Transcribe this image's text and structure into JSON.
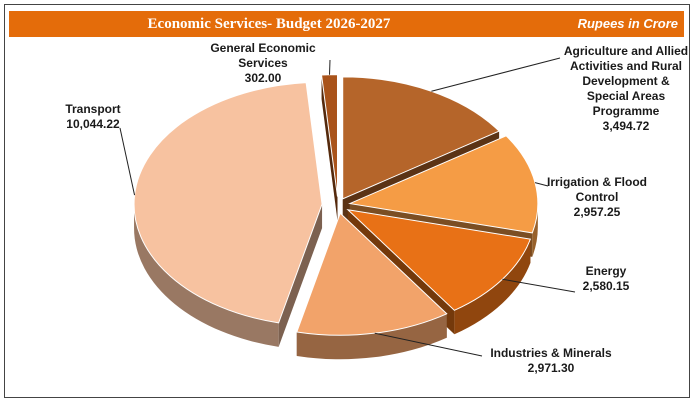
{
  "header": {
    "title": "Economic Services- Budget 2026-2027",
    "unit": "Rupees in Crore"
  },
  "chart_data": {
    "type": "pie",
    "title": "Economic Services- Budget 2026-2027",
    "unit": "Rupees in Crore",
    "slices": [
      {
        "name": "Agriculture and Allied Activities and Rural Development & Special Areas Programme",
        "label_lines": [
          "Agriculture and Allied",
          "Activities and Rural",
          "Development &",
          "Special Areas",
          "Programme"
        ],
        "value": 3494.72,
        "value_label": "3,494.72",
        "color": "#b5652a"
      },
      {
        "name": "Irrigation & Flood Control",
        "label_lines": [
          "Irrigation & Flood",
          "Control"
        ],
        "value": 2957.25,
        "value_label": "2,957.25",
        "color": "#f59c45"
      },
      {
        "name": "Energy",
        "label_lines": [
          "Energy"
        ],
        "value": 2580.15,
        "value_label": "2,580.15",
        "color": "#e87116"
      },
      {
        "name": "Industries & Minerals",
        "label_lines": [
          "Industries & Minerals"
        ],
        "value": 2971.3,
        "value_label": "2,971.30",
        "color": "#f2a36a"
      },
      {
        "name": "Transport",
        "label_lines": [
          "Transport"
        ],
        "value": 10044.22,
        "value_label": "10,044.22",
        "color": "#f7c2a0"
      },
      {
        "name": "General Economic Services",
        "label_lines": [
          "General Economic",
          "Services"
        ],
        "value": 302.0,
        "value_label": "302.00",
        "color": "#a9531a"
      }
    ]
  }
}
